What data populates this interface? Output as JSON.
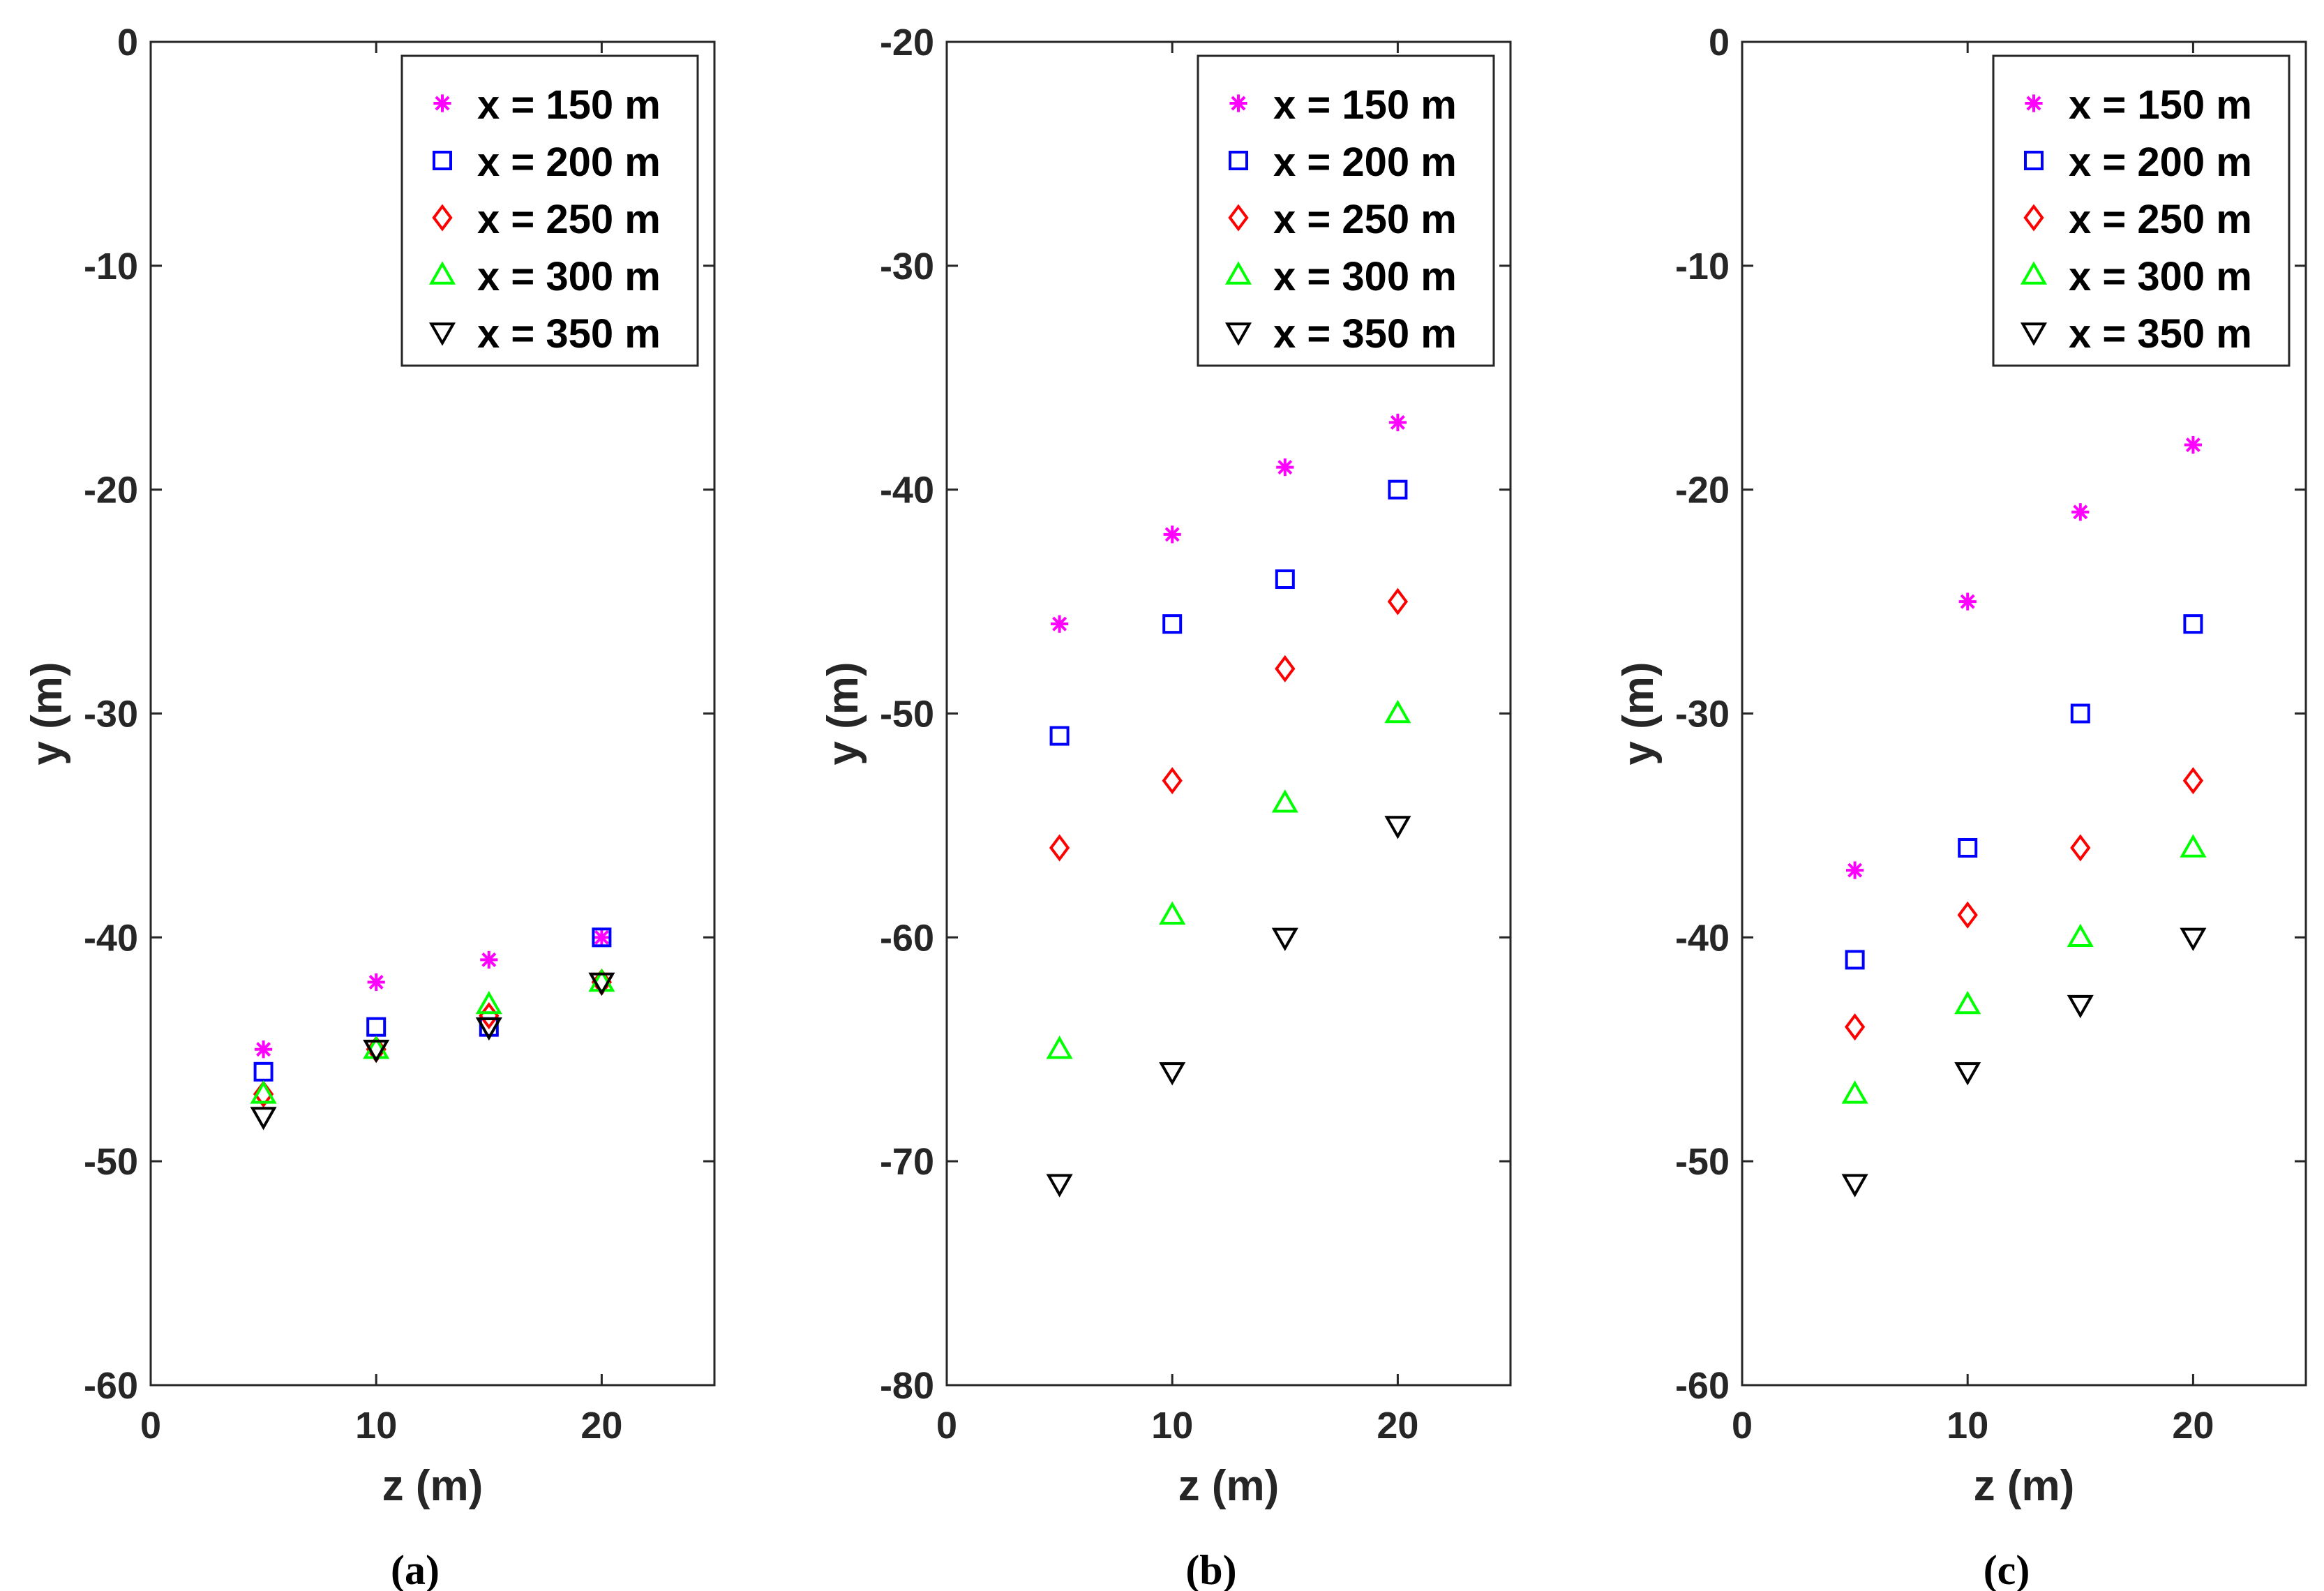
{
  "colors": {
    "x150": "#ff00ff",
    "x200": "#0000ff",
    "x250": "#ff0000",
    "x300": "#00ff00",
    "x350": "#000000",
    "axis": "#262626"
  },
  "chart_data": [
    {
      "type": "scatter",
      "caption": "(a)",
      "xlabel": "z (m)",
      "ylabel": "y (m)",
      "xlim": [
        0,
        25
      ],
      "ylim": [
        -60,
        0
      ],
      "xticks": [
        0,
        10,
        20
      ],
      "yticks": [
        0,
        -10,
        -20,
        -30,
        -40,
        -50,
        -60
      ],
      "legend_position": "top-right",
      "series": [
        {
          "name": "x = 150 m",
          "marker": "asterisk",
          "color": "#ff00ff",
          "x": [
            5,
            10,
            15,
            20
          ],
          "y": [
            -45,
            -42,
            -41,
            -40
          ]
        },
        {
          "name": "x = 200 m",
          "marker": "square",
          "color": "#0000ff",
          "x": [
            5,
            10,
            15,
            20
          ],
          "y": [
            -46,
            -44,
            -44,
            -40
          ]
        },
        {
          "name": "x = 250 m",
          "marker": "diamond",
          "color": "#ff0000",
          "x": [
            5,
            10,
            15,
            20
          ],
          "y": [
            -47,
            -45,
            -43.5,
            -42
          ]
        },
        {
          "name": "x = 300 m",
          "marker": "triangle-up",
          "color": "#00ff00",
          "x": [
            5,
            10,
            15,
            20
          ],
          "y": [
            -47,
            -45,
            -43,
            -42
          ]
        },
        {
          "name": "x = 350 m",
          "marker": "triangle-down",
          "color": "#000000",
          "x": [
            5,
            10,
            15,
            20
          ],
          "y": [
            -48,
            -45,
            -44,
            -42
          ]
        }
      ]
    },
    {
      "type": "scatter",
      "caption": "(b)",
      "xlabel": "z (m)",
      "ylabel": "y (m)",
      "xlim": [
        0,
        25
      ],
      "ylim": [
        -80,
        -20
      ],
      "xticks": [
        0,
        10,
        20
      ],
      "yticks": [
        -20,
        -30,
        -40,
        -50,
        -60,
        -70,
        -80
      ],
      "legend_position": "top-right",
      "series": [
        {
          "name": "x = 150 m",
          "marker": "asterisk",
          "color": "#ff00ff",
          "x": [
            5,
            10,
            15,
            20
          ],
          "y": [
            -46,
            -42,
            -39,
            -37
          ]
        },
        {
          "name": "x = 200 m",
          "marker": "square",
          "color": "#0000ff",
          "x": [
            5,
            10,
            15,
            20
          ],
          "y": [
            -51,
            -46,
            -44,
            -40
          ]
        },
        {
          "name": "x = 250 m",
          "marker": "diamond",
          "color": "#ff0000",
          "x": [
            5,
            10,
            15,
            20
          ],
          "y": [
            -56,
            -53,
            -48,
            -45
          ]
        },
        {
          "name": "x = 300 m",
          "marker": "triangle-up",
          "color": "#00ff00",
          "x": [
            5,
            10,
            15,
            20
          ],
          "y": [
            -65,
            -59,
            -54,
            -50
          ]
        },
        {
          "name": "x = 350 m",
          "marker": "triangle-down",
          "color": "#000000",
          "x": [
            5,
            10,
            15,
            20
          ],
          "y": [
            -71,
            -66,
            -60,
            -55
          ]
        }
      ]
    },
    {
      "type": "scatter",
      "caption": "(c)",
      "xlabel": "z (m)",
      "ylabel": "y (m)",
      "xlim": [
        0,
        25
      ],
      "ylim": [
        -60,
        0
      ],
      "xticks": [
        0,
        10,
        20
      ],
      "yticks": [
        0,
        -10,
        -20,
        -30,
        -40,
        -50,
        -60
      ],
      "legend_position": "top-right",
      "series": [
        {
          "name": "x = 150 m",
          "marker": "asterisk",
          "color": "#ff00ff",
          "x": [
            5,
            10,
            15,
            20
          ],
          "y": [
            -37,
            -25,
            -21,
            -18
          ]
        },
        {
          "name": "x = 200 m",
          "marker": "square",
          "color": "#0000ff",
          "x": [
            5,
            10,
            15,
            20
          ],
          "y": [
            -41,
            -36,
            -30,
            -26
          ]
        },
        {
          "name": "x = 250 m",
          "marker": "diamond",
          "color": "#ff0000",
          "x": [
            5,
            10,
            15,
            20
          ],
          "y": [
            -44,
            -39,
            -36,
            -33
          ]
        },
        {
          "name": "x = 300 m",
          "marker": "triangle-up",
          "color": "#00ff00",
          "x": [
            5,
            10,
            15,
            20
          ],
          "y": [
            -47,
            -43,
            -40,
            -36
          ]
        },
        {
          "name": "x = 350 m",
          "marker": "triangle-down",
          "color": "#000000",
          "x": [
            5,
            10,
            15,
            20
          ],
          "y": [
            -51,
            -46,
            -43,
            -40
          ]
        }
      ]
    }
  ]
}
